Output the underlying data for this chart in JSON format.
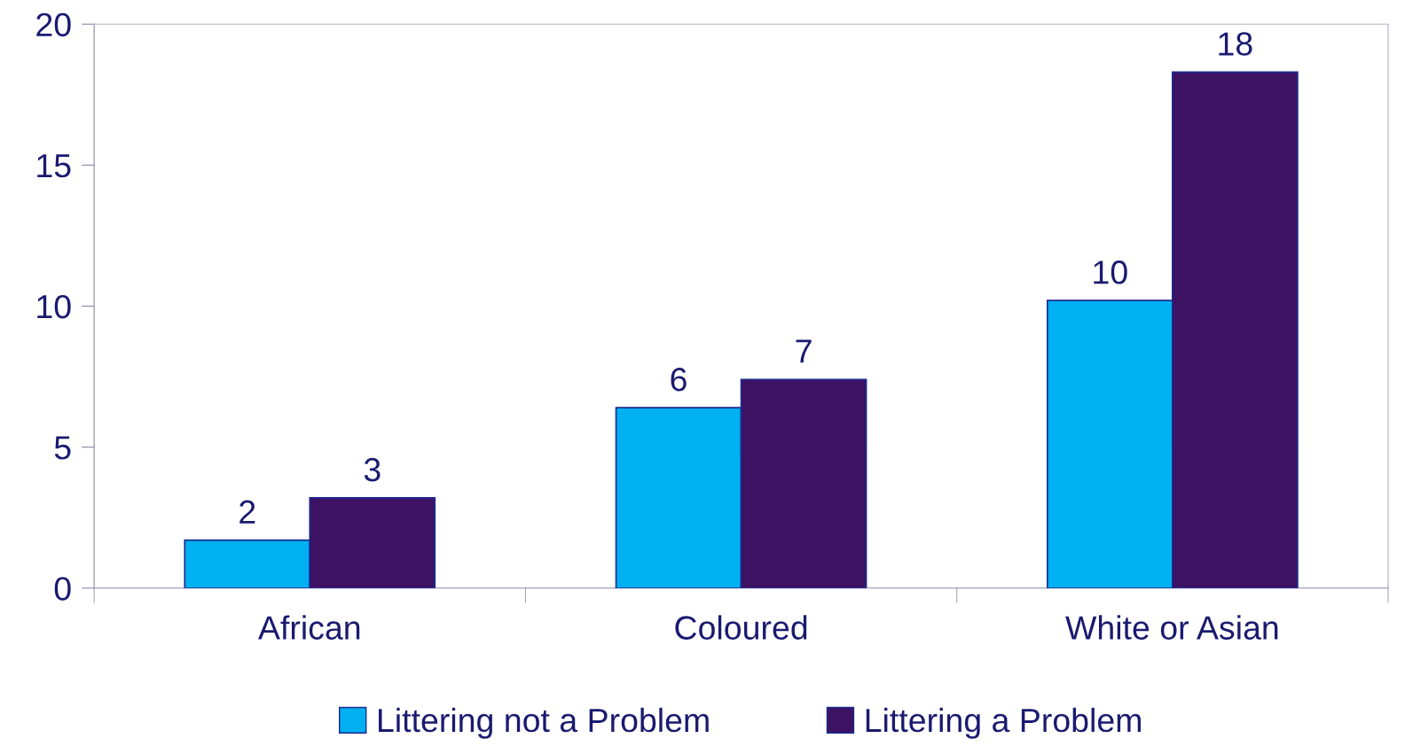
{
  "chart_data": {
    "type": "bar",
    "categories": [
      "African",
      "Coloured",
      "White or Asian"
    ],
    "series": [
      {
        "name": "Littering not a Problem",
        "color": "#00b0f0",
        "values": [
          1.7,
          6.4,
          10.2
        ],
        "value_labels": [
          "2",
          "6",
          "10"
        ]
      },
      {
        "name": "Littering a Problem",
        "color": "#3d1263",
        "values": [
          3.2,
          7.4,
          18.3
        ],
        "value_labels": [
          "3",
          "7",
          "18"
        ]
      }
    ],
    "ylim": [
      0,
      20
    ],
    "yticks": [
      0,
      5,
      10,
      15,
      20
    ],
    "grid": false,
    "legend": "bottom"
  }
}
